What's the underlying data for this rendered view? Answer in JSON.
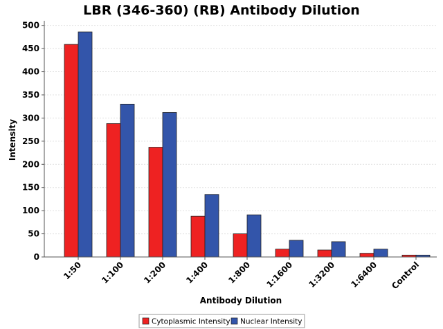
{
  "chart_data": {
    "type": "bar",
    "title": "LBR (346-360) (RB) Antibody Dilution",
    "xlabel": "Antibody Dilution",
    "ylabel": "Intensity",
    "ylim": [
      0,
      510
    ],
    "yticks": [
      0,
      50,
      100,
      150,
      200,
      250,
      300,
      350,
      400,
      450,
      500
    ],
    "grid": true,
    "legend_position": "bottom-center",
    "categories": [
      "1:50",
      "1:100",
      "1:200",
      "1:400",
      "1:800",
      "1:1600",
      "1:3200",
      "1:6400",
      "Control"
    ],
    "series": [
      {
        "name": "Cytoplasmic Intensity",
        "color": "#ee2222",
        "values": [
          459,
          288,
          237,
          88,
          50,
          17,
          15,
          8,
          4
        ]
      },
      {
        "name": "Nuclear Intensity",
        "color": "#3355aa",
        "values": [
          486,
          330,
          312,
          135,
          91,
          36,
          33,
          17,
          4
        ]
      }
    ]
  }
}
